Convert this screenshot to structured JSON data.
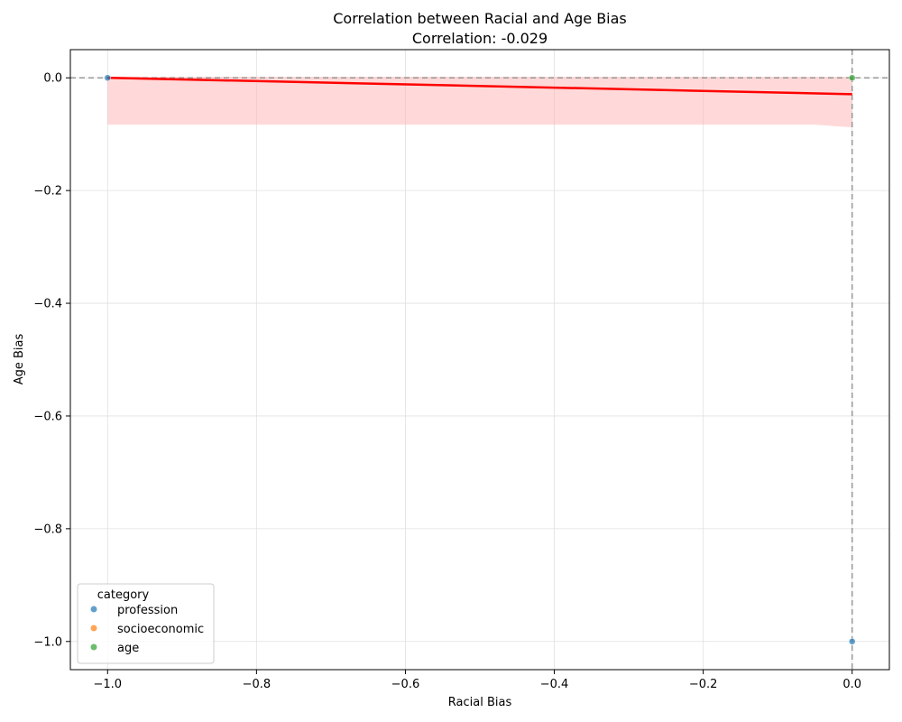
{
  "chart_data": {
    "type": "scatter",
    "title": "Correlation between Racial and Age Bias",
    "subtitle": "Correlation: -0.029",
    "xlabel": "Racial Bias",
    "ylabel": "Age Bias",
    "xlim": [
      -1.05,
      0.05
    ],
    "ylim": [
      -1.05,
      0.05
    ],
    "xticks": [
      -1.0,
      -0.8,
      -0.6,
      -0.4,
      -0.2,
      0.0
    ],
    "yticks": [
      0.0,
      -0.2,
      -0.4,
      -0.6,
      -0.8,
      -1.0
    ],
    "xtick_labels": [
      "−1.0",
      "−0.8",
      "−0.6",
      "−0.4",
      "−0.2",
      "0.0"
    ],
    "ytick_labels": [
      "0.0",
      "−0.2",
      "−0.4",
      "−0.6",
      "−0.8",
      "−1.0"
    ],
    "grid": true,
    "legend_position": "lower-left",
    "legend_title": "category",
    "series": [
      {
        "name": "profession",
        "color": "#1f77b4",
        "points": [
          [
            -1.0,
            0.0
          ],
          [
            0.0,
            -1.0
          ]
        ]
      },
      {
        "name": "socioeconomic",
        "color": "#ff7f0e",
        "points": []
      },
      {
        "name": "age",
        "color": "#2ca02c",
        "points": [
          [
            0.0,
            0.0
          ]
        ]
      }
    ],
    "regression": {
      "color": "#ff0000",
      "line": [
        [
          -1.0,
          0.0
        ],
        [
          0.0,
          -0.029
        ]
      ],
      "ci_color": "#ffb3b3",
      "ci_upper": [
        [
          -1.0,
          0.002
        ],
        [
          0.0,
          0.002
        ]
      ],
      "ci_lower": [
        [
          -1.0,
          -0.083
        ],
        [
          -0.1,
          -0.083
        ],
        [
          -0.05,
          -0.083
        ],
        [
          -0.02,
          -0.086
        ],
        [
          0.0,
          -0.088
        ]
      ]
    },
    "reference_lines": {
      "color": "#999999",
      "x": 0.0,
      "y": 0.0
    }
  }
}
